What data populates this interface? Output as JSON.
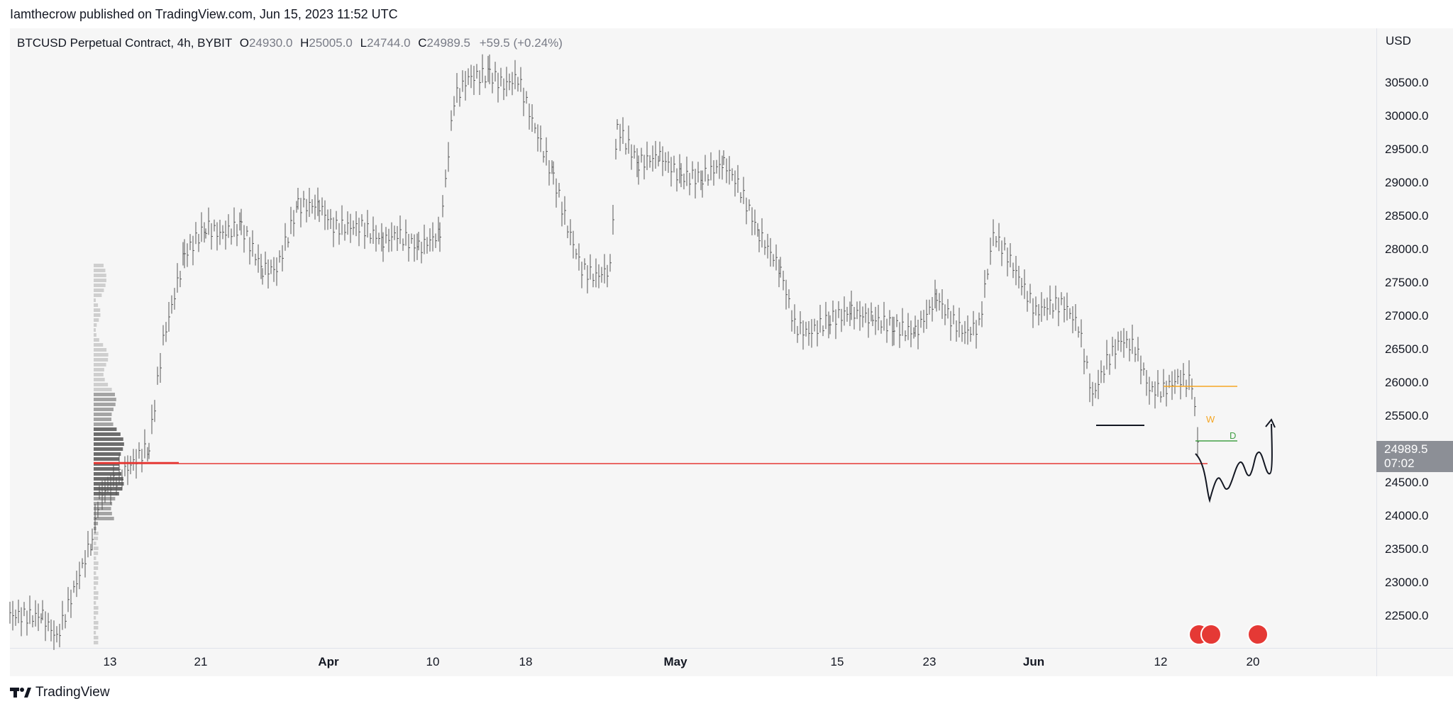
{
  "caption": "Iamthecrow published on TradingView.com, Jun 15, 2023 11:52 UTC",
  "legend": {
    "symbol": "BTCUSD Perpetual Contract, 4h, BYBIT",
    "o_label": "O",
    "o_value": "24930.0",
    "h_label": "H",
    "h_value": "25005.0",
    "l_label": "L",
    "l_value": "24744.0",
    "c_label": "C",
    "c_value": "24989.5",
    "change": "+59.5 (+0.24%)"
  },
  "currency": "USD",
  "last_price": {
    "price": "24989.5",
    "countdown": "07:02"
  },
  "price_axis": [
    "30500.0",
    "30000.0",
    "29500.0",
    "29000.0",
    "28500.0",
    "28000.0",
    "27500.0",
    "27000.0",
    "26500.0",
    "26000.0",
    "25500.0",
    "24500.0",
    "24000.0",
    "23500.0",
    "23000.0",
    "22500.0"
  ],
  "time_axis": [
    {
      "label": "13",
      "bold": false
    },
    {
      "label": "21",
      "bold": false
    },
    {
      "label": "Apr",
      "bold": true
    },
    {
      "label": "10",
      "bold": false
    },
    {
      "label": "18",
      "bold": false
    },
    {
      "label": "May",
      "bold": true
    },
    {
      "label": "15",
      "bold": false
    },
    {
      "label": "23",
      "bold": false
    },
    {
      "label": "Jun",
      "bold": true
    },
    {
      "label": "12",
      "bold": false
    },
    {
      "label": "20",
      "bold": false
    }
  ],
  "annotations": {
    "weekly_label": "W",
    "daily_label": "D"
  },
  "colors": {
    "candle": "#555555",
    "support_line": "#e53935",
    "weekly": "#f5a623",
    "daily": "#43a047",
    "price_tag": "#8c8f96"
  },
  "brand": "TradingView"
}
